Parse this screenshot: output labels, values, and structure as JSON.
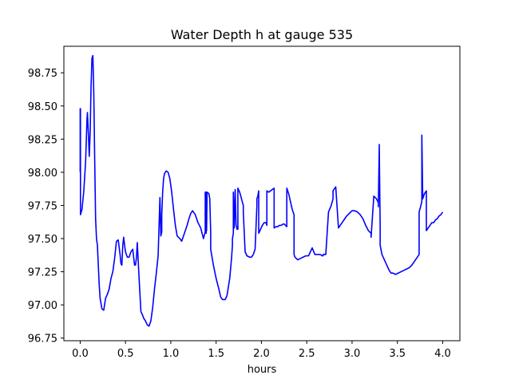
{
  "chart_data": {
    "type": "line",
    "title": "Water Depth h at gauge 535",
    "xlabel": "hours",
    "ylabel": "",
    "xlim": [
      -0.18,
      4.19
    ],
    "ylim": [
      96.73,
      98.95
    ],
    "xticks": [
      0.0,
      0.5,
      1.0,
      1.5,
      2.0,
      2.5,
      3.0,
      3.5,
      4.0
    ],
    "xtick_labels": [
      "0.0",
      "0.5",
      "1.0",
      "1.5",
      "2.0",
      "2.5",
      "3.0",
      "3.5",
      "4.0"
    ],
    "yticks": [
      96.75,
      97.0,
      97.25,
      97.5,
      97.75,
      98.0,
      98.25,
      98.5,
      98.75
    ],
    "ytick_labels": [
      "96.75",
      "97.00",
      "97.25",
      "97.50",
      "97.75",
      "98.00",
      "98.25",
      "98.50",
      "98.75"
    ],
    "grid": false,
    "colors": {
      "line": "#0000ff",
      "axes": "#000000",
      "background": "#ffffff"
    },
    "series": [
      {
        "x": [
          0.0,
          0.0,
          0.003,
          0.003,
          0.02,
          0.04,
          0.06,
          0.075,
          0.08,
          0.09,
          0.1,
          0.11,
          0.12,
          0.13,
          0.14,
          0.15,
          0.16,
          0.17,
          0.18,
          0.19,
          0.2,
          0.21,
          0.22,
          0.24,
          0.26,
          0.28,
          0.3,
          0.32,
          0.34,
          0.36,
          0.38,
          0.4,
          0.42,
          0.44,
          0.45,
          0.46,
          0.47,
          0.48,
          0.49,
          0.5,
          0.51,
          0.52,
          0.54,
          0.56,
          0.58,
          0.6,
          0.61,
          0.62,
          0.63,
          0.65,
          0.67,
          0.69,
          0.7,
          0.72,
          0.74,
          0.76,
          0.78,
          0.8,
          0.82,
          0.84,
          0.86,
          0.88,
          0.89,
          0.9,
          0.9,
          0.91,
          0.92,
          0.93,
          0.95,
          0.97,
          0.99,
          1.01,
          1.03,
          1.05,
          1.07,
          1.1,
          1.12,
          1.15,
          1.18,
          1.2,
          1.22,
          1.24,
          1.27,
          1.3,
          1.33,
          1.36,
          1.38,
          1.38,
          1.39,
          1.39,
          1.395,
          1.395,
          1.4,
          1.42,
          1.43,
          1.44,
          1.44,
          1.45,
          1.47,
          1.5,
          1.53,
          1.55,
          1.57,
          1.6,
          1.62,
          1.65,
          1.67,
          1.68,
          1.68,
          1.69,
          1.69,
          1.7,
          1.71,
          1.72,
          1.73,
          1.73,
          1.74,
          1.74,
          1.76,
          1.78,
          1.8,
          1.8,
          1.82,
          1.84,
          1.87,
          1.89,
          1.91,
          1.93,
          1.95,
          1.95,
          1.96,
          1.97,
          1.97,
          1.99,
          2.01,
          2.03,
          2.05,
          2.06,
          2.06,
          2.08,
          2.1,
          2.12,
          2.14,
          2.14,
          2.16,
          2.18,
          2.2,
          2.22,
          2.24,
          2.25,
          2.28,
          2.28,
          2.3,
          2.32,
          2.34,
          2.36,
          2.36,
          2.37,
          2.4,
          2.43,
          2.46,
          2.49,
          2.52,
          2.54,
          2.56,
          2.56,
          2.59,
          2.62,
          2.65,
          2.67,
          2.68,
          2.68,
          2.71,
          2.74,
          2.77,
          2.79,
          2.79,
          2.82,
          2.85,
          2.88,
          2.91,
          2.94,
          2.97,
          3.0,
          3.03,
          3.06,
          3.09,
          3.12,
          3.15,
          3.18,
          3.21,
          3.21,
          3.24,
          3.27,
          3.29,
          3.29,
          3.3,
          3.3,
          3.31,
          3.31,
          3.33,
          3.35,
          3.37,
          3.39,
          3.41,
          3.43,
          3.45,
          3.48,
          3.51,
          3.54,
          3.57,
          3.6,
          3.63,
          3.66,
          3.69,
          3.72,
          3.74,
          3.74,
          3.76,
          3.77,
          3.77,
          3.78,
          3.78,
          3.8,
          3.82,
          3.82,
          3.84,
          3.86,
          3.88,
          3.9,
          3.92,
          3.94,
          3.96,
          3.98,
          4.0
        ],
        "y": [
          98.0,
          98.48,
          98.48,
          97.68,
          97.72,
          97.86,
          98.08,
          98.4,
          98.45,
          98.3,
          98.12,
          98.3,
          98.65,
          98.86,
          98.88,
          98.6,
          98.1,
          97.65,
          97.5,
          97.45,
          97.3,
          97.15,
          97.05,
          96.97,
          96.96,
          97.05,
          97.08,
          97.12,
          97.2,
          97.25,
          97.35,
          97.48,
          97.49,
          97.38,
          97.31,
          97.3,
          97.45,
          97.51,
          97.45,
          97.4,
          97.38,
          97.36,
          97.36,
          97.4,
          97.42,
          97.3,
          97.3,
          97.35,
          97.47,
          97.2,
          96.95,
          96.92,
          96.9,
          96.88,
          96.85,
          96.84,
          96.88,
          96.98,
          97.12,
          97.24,
          97.37,
          97.81,
          97.52,
          97.55,
          97.68,
          97.85,
          97.95,
          97.99,
          98.01,
          98.0,
          97.95,
          97.85,
          97.72,
          97.6,
          97.52,
          97.5,
          97.48,
          97.54,
          97.6,
          97.65,
          97.69,
          97.71,
          97.68,
          97.62,
          97.58,
          97.5,
          97.55,
          97.85,
          97.85,
          97.54,
          97.85,
          97.56,
          97.85,
          97.84,
          97.8,
          97.55,
          97.42,
          97.38,
          97.3,
          97.2,
          97.12,
          97.06,
          97.04,
          97.04,
          97.07,
          97.2,
          97.35,
          97.45,
          97.5,
          97.54,
          97.85,
          97.58,
          97.87,
          97.6,
          97.58,
          97.57,
          97.57,
          97.88,
          97.85,
          97.8,
          97.75,
          97.7,
          97.4,
          97.37,
          97.36,
          97.36,
          97.38,
          97.42,
          97.75,
          97.8,
          97.82,
          97.86,
          97.54,
          97.57,
          97.6,
          97.62,
          97.62,
          97.6,
          97.86,
          97.85,
          97.86,
          97.87,
          97.88,
          97.58,
          97.59,
          97.59,
          97.6,
          97.6,
          97.61,
          97.61,
          97.59,
          97.88,
          97.84,
          97.78,
          97.72,
          97.68,
          97.38,
          97.36,
          97.34,
          97.35,
          97.36,
          97.37,
          97.37,
          97.4,
          97.43,
          97.43,
          97.38,
          97.38,
          97.38,
          97.37,
          97.37,
          97.38,
          97.38,
          97.7,
          97.75,
          97.8,
          97.86,
          97.89,
          97.58,
          97.61,
          97.64,
          97.67,
          97.69,
          97.71,
          97.71,
          97.7,
          97.68,
          97.65,
          97.6,
          97.56,
          97.54,
          97.51,
          97.82,
          97.8,
          97.77,
          97.74,
          98.2,
          98.21,
          97.6,
          97.45,
          97.38,
          97.35,
          97.32,
          97.29,
          97.26,
          97.24,
          97.24,
          97.23,
          97.24,
          97.25,
          97.26,
          97.27,
          97.28,
          97.3,
          97.33,
          97.36,
          97.38,
          97.7,
          97.75,
          97.78,
          98.28,
          97.8,
          97.8,
          97.84,
          97.86,
          97.56,
          97.58,
          97.6,
          97.62,
          97.62,
          97.64,
          97.65,
          97.67,
          97.68,
          97.7
        ]
      }
    ]
  }
}
